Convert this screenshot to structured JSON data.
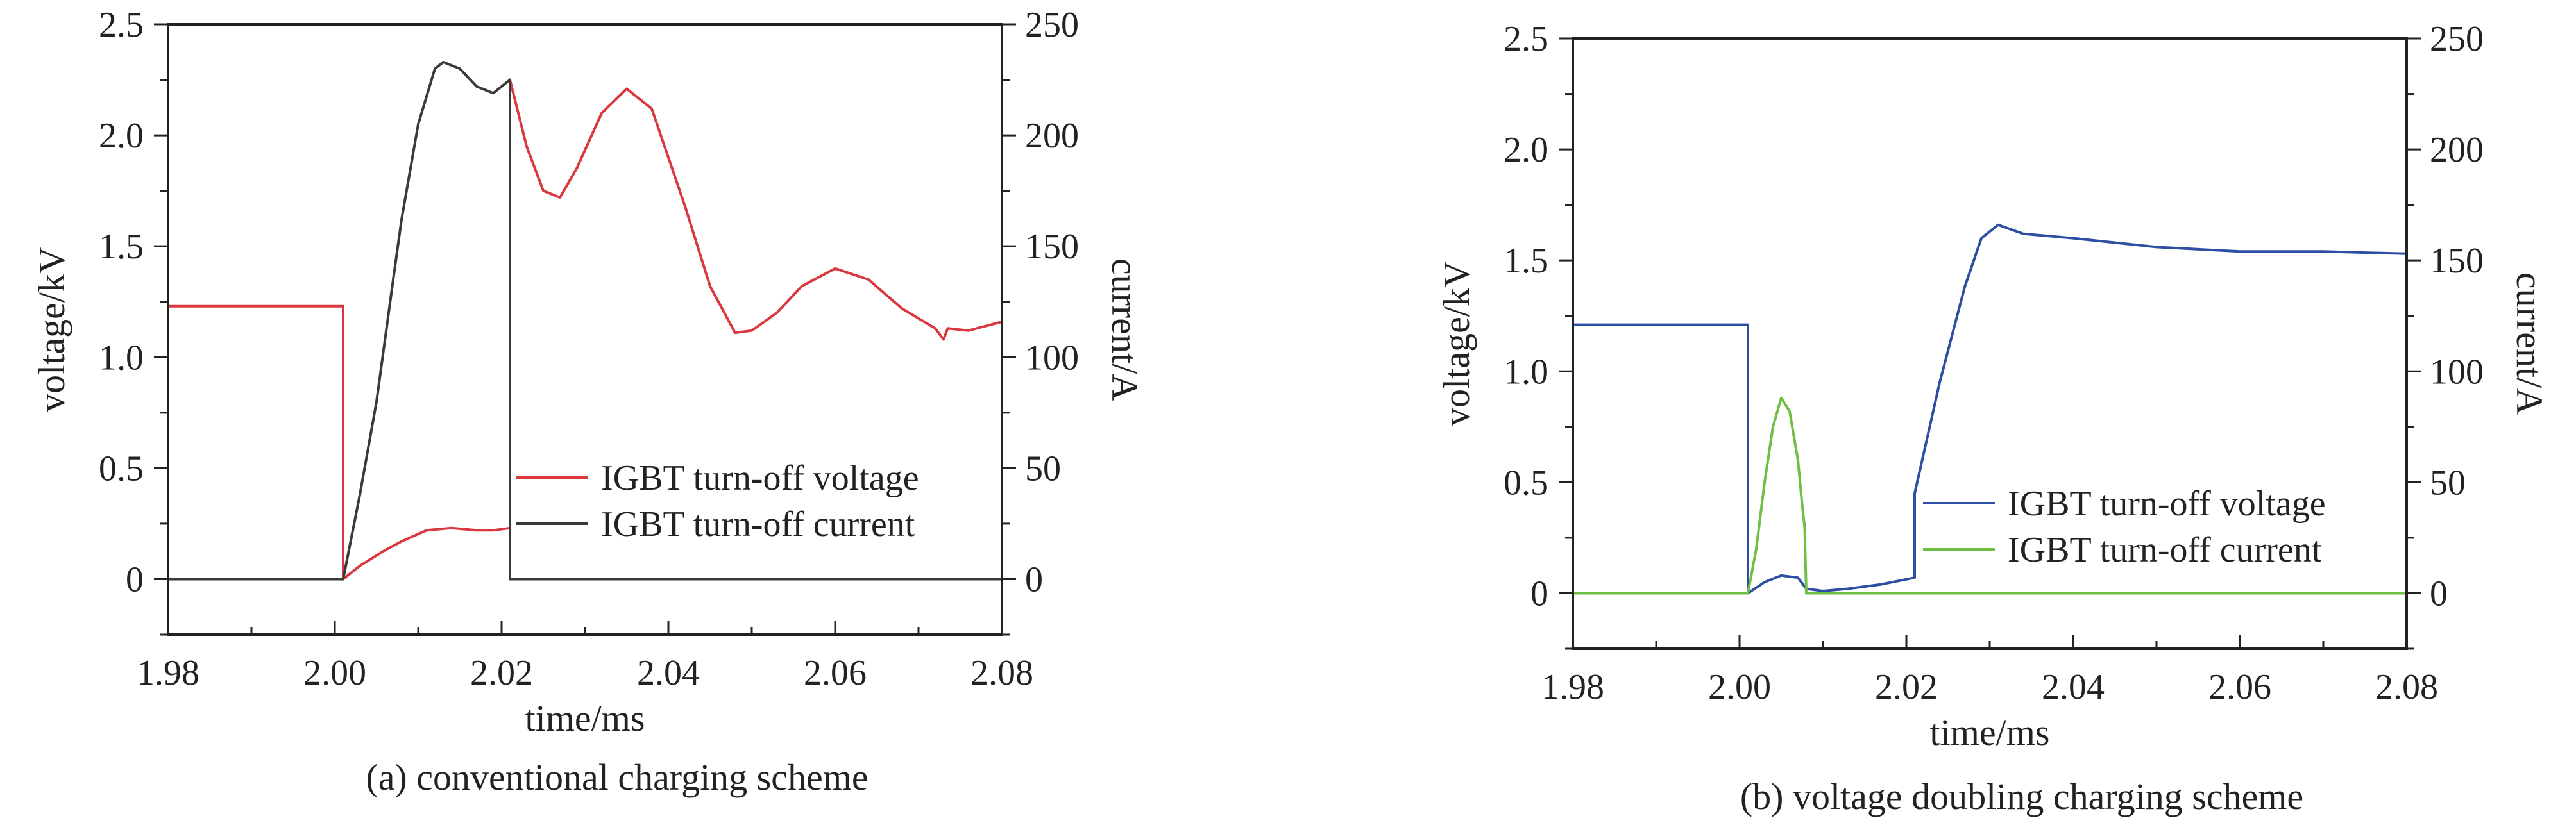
{
  "chart_data": [
    {
      "type": "line",
      "caption": "(a) conventional charging scheme",
      "xlabel": "time/ms",
      "ylabel_left": "voltage/kV",
      "ylabel_right": "current/A",
      "xlim": [
        1.98,
        2.08
      ],
      "ylim_left": [
        -0.25,
        2.5
      ],
      "ylim_right": [
        -25,
        250
      ],
      "xticks": [
        "1.98",
        "2.00",
        "2.02",
        "2.04",
        "2.06",
        "2.08"
      ],
      "yticks_left": [
        "0",
        "0.5",
        "1.0",
        "1.5",
        "2.0",
        "2.5"
      ],
      "yticks_right": [
        "0",
        "50",
        "100",
        "150",
        "200",
        "250"
      ],
      "grid": false,
      "legend_position": "lower-right",
      "series": [
        {
          "name": "IGBT turn-off voltage",
          "axis": "left",
          "color": "#d9393e",
          "x": [
            1.98,
            2.001,
            2.001,
            2.003,
            2.006,
            2.008,
            2.011,
            2.014,
            2.017,
            2.019,
            2.021,
            2.021,
            2.023,
            2.025,
            2.027,
            2.029,
            2.032,
            2.035,
            2.038,
            2.042,
            2.045,
            2.048,
            2.05,
            2.053,
            2.056,
            2.06,
            2.064,
            2.068,
            2.072,
            2.073,
            2.0735,
            2.076,
            2.08
          ],
          "y": [
            1.23,
            1.23,
            0.0,
            0.06,
            0.13,
            0.17,
            0.22,
            0.23,
            0.22,
            0.22,
            0.23,
            2.25,
            1.95,
            1.75,
            1.72,
            1.85,
            2.1,
            2.21,
            2.12,
            1.68,
            1.32,
            1.11,
            1.12,
            1.2,
            1.32,
            1.4,
            1.35,
            1.22,
            1.13,
            1.08,
            1.13,
            1.12,
            1.16
          ]
        },
        {
          "name": "IGBT turn-off current",
          "axis": "right",
          "color": "#3a3a3a",
          "x": [
            1.98,
            2.001,
            2.003,
            2.005,
            2.007,
            2.008,
            2.01,
            2.012,
            2.013,
            2.015,
            2.017,
            2.019,
            2.021,
            2.021,
            2.08
          ],
          "y": [
            0,
            0,
            38,
            80,
            135,
            162,
            205,
            230,
            233,
            230,
            222,
            219,
            225,
            0,
            0
          ]
        }
      ]
    },
    {
      "type": "line",
      "caption": "(b) voltage doubling charging scheme",
      "xlabel": "time/ms",
      "ylabel_left": "voltage/kV",
      "ylabel_right": "current/A",
      "xlim": [
        1.98,
        2.08
      ],
      "ylim_left": [
        -0.25,
        2.5
      ],
      "ylim_right": [
        -25,
        250
      ],
      "xticks": [
        "1.98",
        "2.00",
        "2.02",
        "2.04",
        "2.06",
        "2.08"
      ],
      "yticks_left": [
        "0",
        "0.5",
        "1.0",
        "1.5",
        "2.0",
        "2.5"
      ],
      "yticks_right": [
        "0",
        "50",
        "100",
        "150",
        "200",
        "250"
      ],
      "grid": false,
      "legend_position": "lower-right",
      "series": [
        {
          "name": "IGBT turn-off voltage",
          "axis": "left",
          "color": "#2d4fa3",
          "x": [
            1.98,
            2.001,
            2.001,
            2.003,
            2.005,
            2.007,
            2.008,
            2.01,
            2.013,
            2.017,
            2.021,
            2.021,
            2.024,
            2.027,
            2.029,
            2.031,
            2.034,
            2.04,
            2.05,
            2.06,
            2.07,
            2.08
          ],
          "y": [
            1.21,
            1.21,
            0.0,
            0.05,
            0.08,
            0.07,
            0.02,
            0.01,
            0.02,
            0.04,
            0.07,
            0.45,
            0.95,
            1.38,
            1.6,
            1.66,
            1.62,
            1.6,
            1.56,
            1.54,
            1.54,
            1.53
          ]
        },
        {
          "name": "IGBT turn-off current",
          "axis": "right",
          "color": "#6fbf45",
          "x": [
            1.98,
            2.001,
            2.002,
            2.003,
            2.004,
            2.005,
            2.006,
            2.007,
            2.0075,
            2.0078,
            2.008,
            2.08
          ],
          "y": [
            0,
            0,
            20,
            50,
            75,
            88,
            82,
            60,
            40,
            30,
            0,
            0
          ]
        }
      ]
    }
  ]
}
